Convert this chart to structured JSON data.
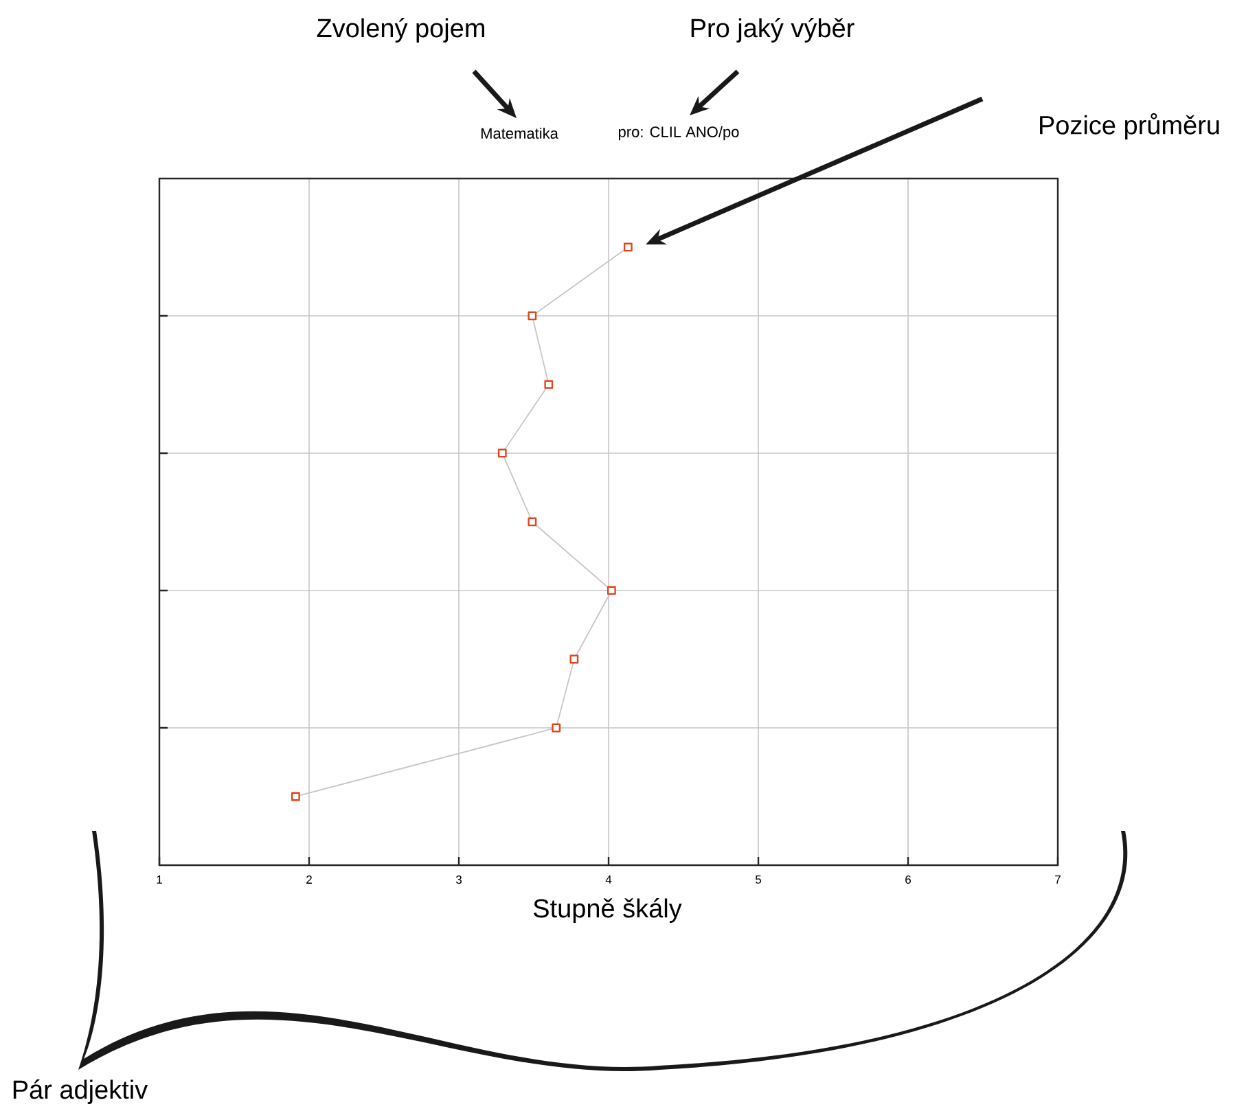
{
  "chart_data": {
    "type": "line",
    "title": "Matematika",
    "subtitle": "pro: CLIL ANO/po",
    "xlabel": "Stupně škály",
    "annotations": [
      "Zvolený pojem",
      "Pro jaký výběr",
      "Pozice průměru",
      "Pár adjektiv"
    ],
    "categories": [
      null,
      null,
      null,
      null,
      null,
      null,
      null,
      null,
      null
    ],
    "orientation": "horizontal",
    "series": [
      {
        "color": "#e0461a",
        "values": [
          4.13,
          3.49,
          3.6,
          3.29,
          3.49,
          4.02,
          3.77,
          3.65,
          1.91
        ]
      }
    ],
    "xlim": [
      1,
      7
    ],
    "xticks": [
      1,
      2,
      3,
      4,
      5,
      6,
      7
    ],
    "grid": true,
    "tick_labels": "x",
    "marker": "square",
    "line_style": "solid"
  }
}
